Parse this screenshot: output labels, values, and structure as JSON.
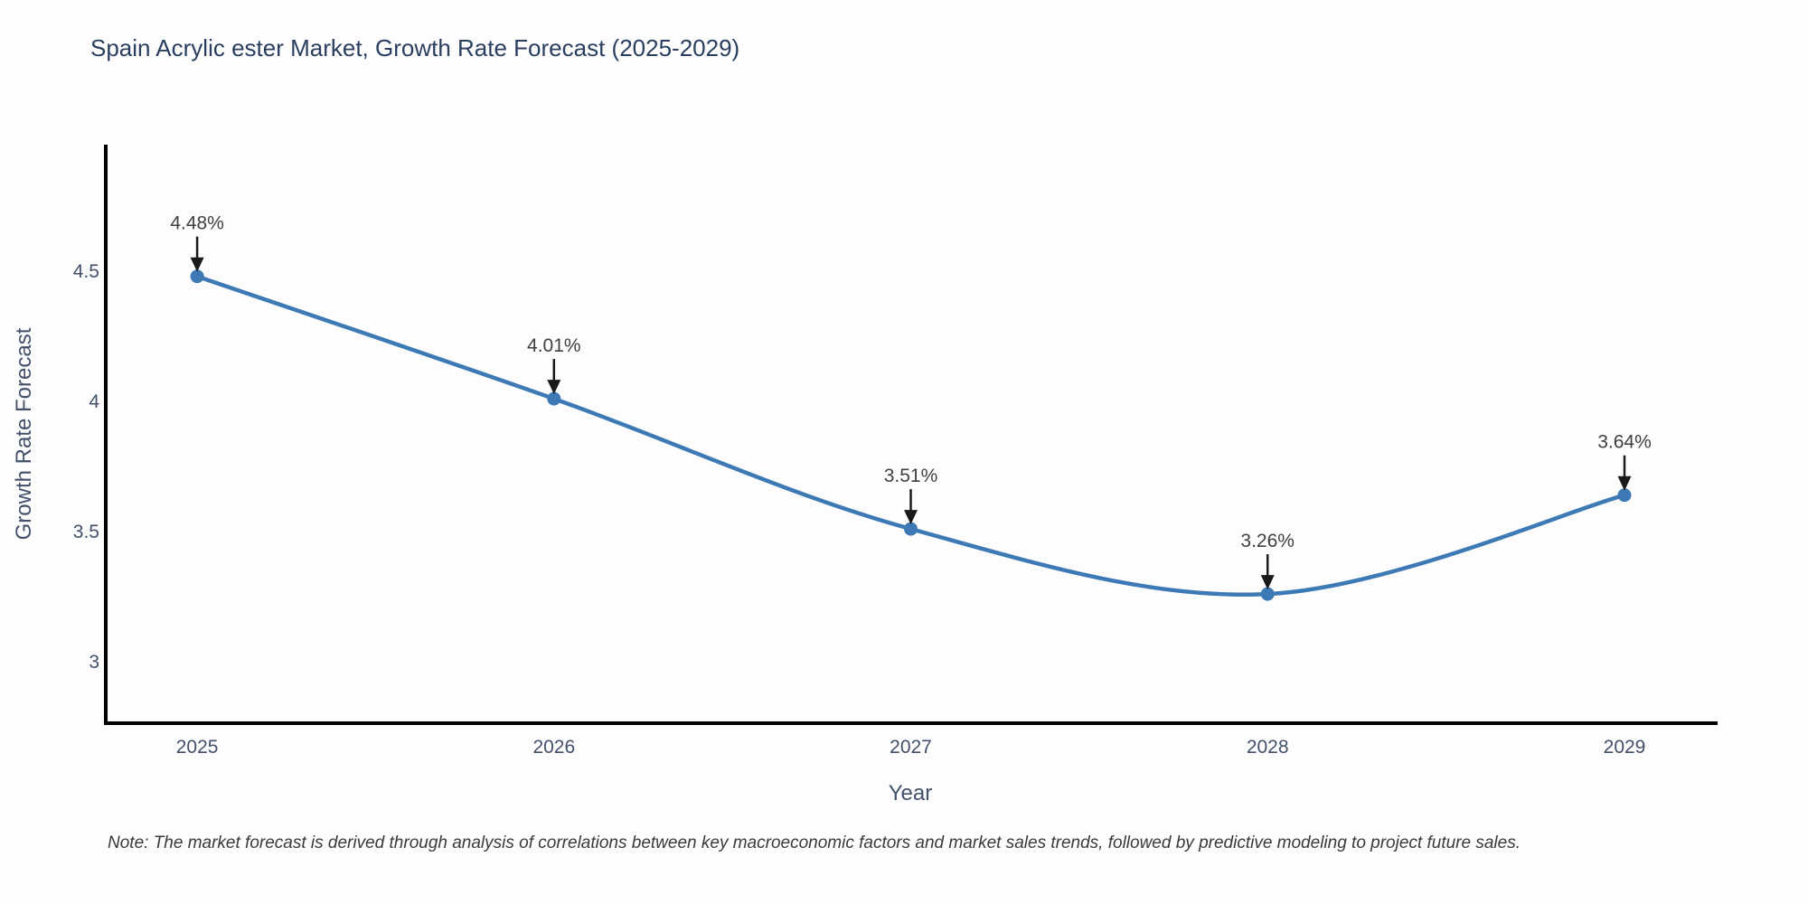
{
  "chart_data": {
    "type": "line",
    "title": "Spain Acrylic ester Market, Growth Rate Forecast (2025-2029)",
    "xlabel": "Year",
    "ylabel": "Growth Rate Forecast",
    "note": "Note: The market forecast is derived through analysis of correlations between key macroeconomic factors and market sales trends, followed by predictive modeling to project future sales.",
    "x": [
      2025,
      2026,
      2027,
      2028,
      2029
    ],
    "y": [
      4.48,
      4.01,
      3.51,
      3.26,
      3.64
    ],
    "point_labels": [
      "4.48%",
      "4.01%",
      "3.51%",
      "3.26%",
      "3.64%"
    ],
    "x_tick_labels": [
      "2025",
      "2026",
      "2027",
      "2028",
      "2029"
    ],
    "y_ticks": [
      3,
      3.5,
      4,
      4.5
    ],
    "y_tick_labels": [
      "3",
      "3.5",
      "4",
      "4.5"
    ],
    "xlim": [
      2024.744,
      2029.261
    ],
    "ylim": [
      2.764,
      4.986
    ],
    "line_shape": "spline",
    "grid": false,
    "legend": "none",
    "colors": {
      "line": "#3d7ab5",
      "marker": "#3d7ab5",
      "axis": "#000000",
      "title": "#2a3f5f",
      "tick_label": "#42506a",
      "annotation": "#404040",
      "arrow": "#1a1a1a",
      "background": "#fdfdfd"
    }
  }
}
